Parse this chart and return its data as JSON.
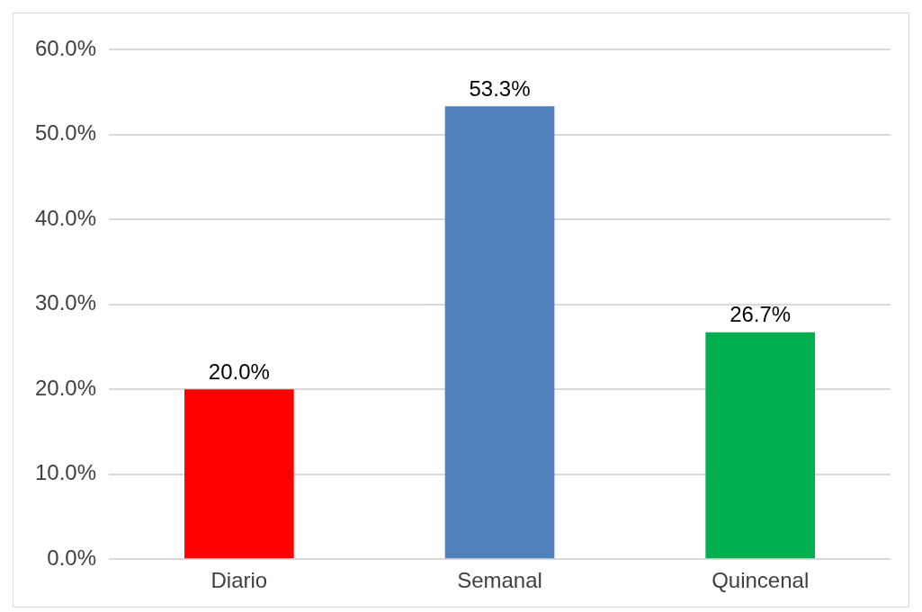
{
  "chart_data": {
    "type": "bar",
    "categories": [
      "Diario",
      "Semanal",
      "Quincenal"
    ],
    "values": [
      20.0,
      53.3,
      26.7
    ],
    "colors": [
      "#ff0000",
      "#4f81bd",
      "#00b050"
    ],
    "value_labels": [
      "20.0%",
      "53.3%",
      "26.7%"
    ],
    "ylim": [
      0,
      60
    ],
    "yticks": [
      {
        "value": 0,
        "label": "0.0%"
      },
      {
        "value": 10,
        "label": "10.0%"
      },
      {
        "value": 20,
        "label": "20.0%"
      },
      {
        "value": 30,
        "label": "30.0%"
      },
      {
        "value": 40,
        "label": "40.0%"
      },
      {
        "value": 50,
        "label": "50.0%"
      },
      {
        "value": 60,
        "label": "60.0%"
      }
    ],
    "grid": "y",
    "legend": false
  }
}
